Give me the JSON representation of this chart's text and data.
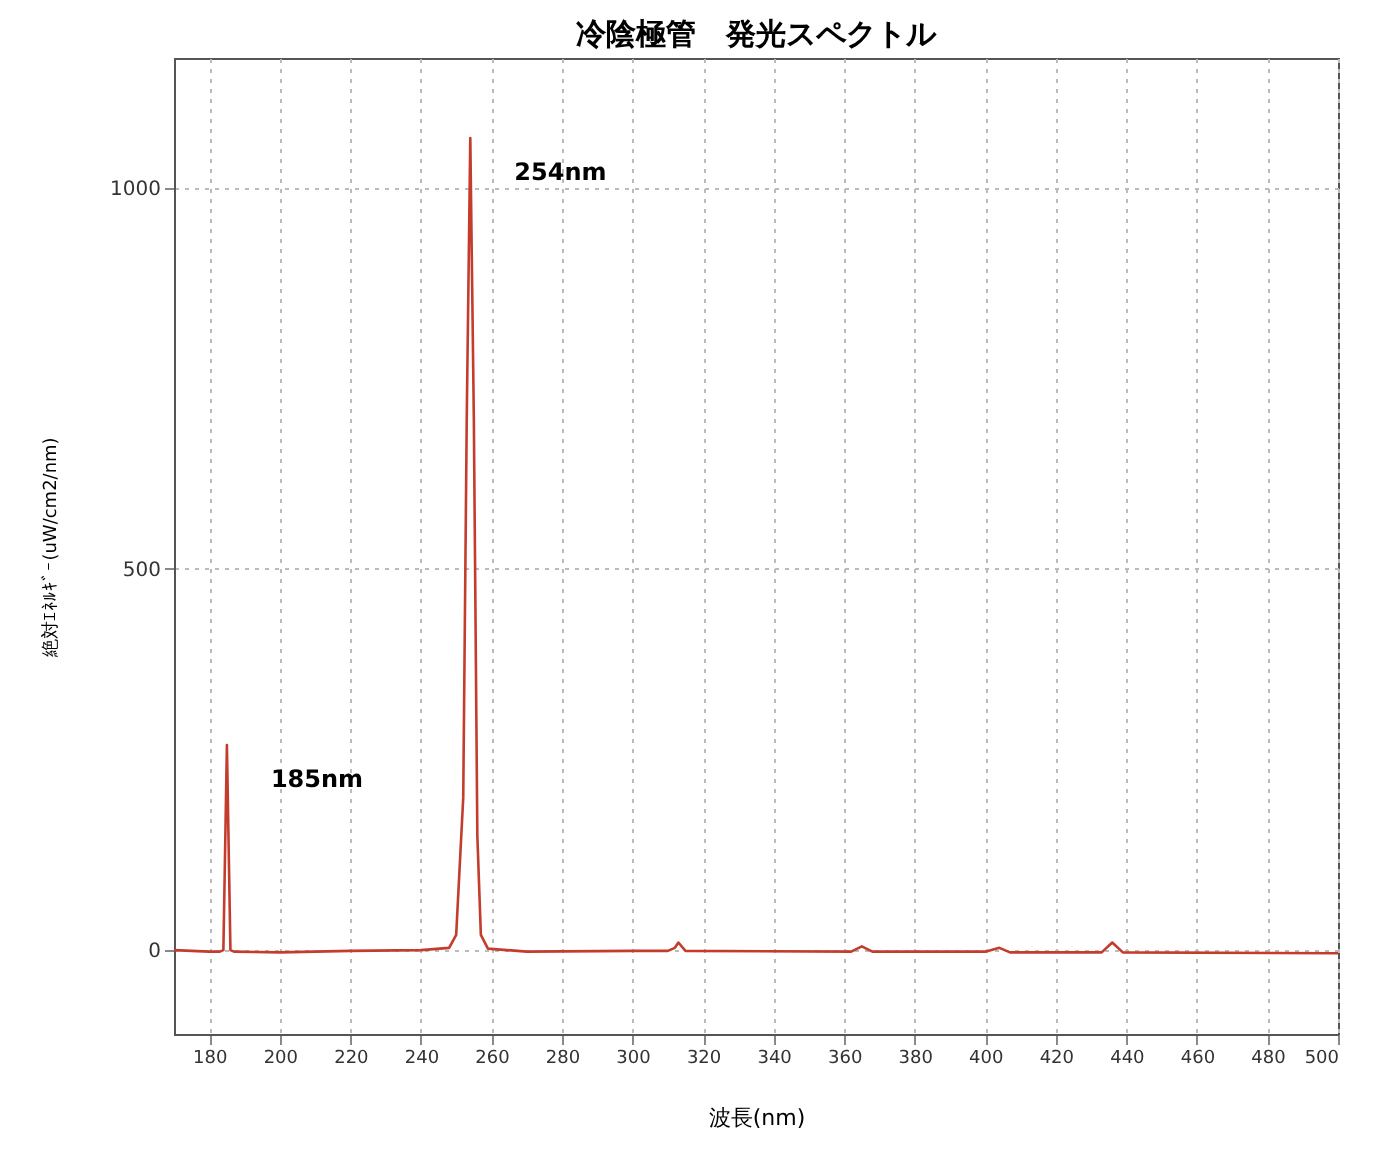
{
  "chart_data": {
    "type": "line",
    "title": "冷陰極管　発光スペクトル",
    "xlabel": "波長(nm)",
    "ylabel": "絶対ｴﾈﾙｷﾞｰ(uW/cm2/nm)",
    "x": [
      170,
      180,
      183,
      184,
      185,
      186,
      187,
      200,
      220,
      240,
      248,
      250,
      252,
      253,
      254,
      255,
      256,
      257,
      259,
      270,
      300,
      310,
      312,
      313,
      315,
      362,
      365,
      368,
      400,
      404,
      407,
      433,
      436,
      439,
      500
    ],
    "series": [
      {
        "color": "#c43c2c",
        "values": [
          0,
          -2,
          -2,
          0,
          269,
          0,
          -2,
          -3,
          -1,
          0,
          3,
          20,
          200,
          700,
          1065,
          700,
          150,
          20,
          2,
          -2,
          -1,
          -1,
          3,
          10,
          -1,
          -2,
          5,
          -2,
          -2,
          3,
          -3,
          -3,
          10,
          -3,
          -4
        ]
      }
    ],
    "xlim": [
      170,
      500
    ],
    "xticks": [
      180,
      200,
      220,
      240,
      260,
      280,
      300,
      320,
      340,
      360,
      380,
      400,
      420,
      440,
      460,
      480,
      500
    ],
    "ylim": [
      -110,
      1170
    ],
    "yticks": [
      0,
      500,
      1000
    ],
    "grid": true,
    "marker": "none",
    "line_style": "solid",
    "annotations": [
      {
        "text": "254nm",
        "x": 254,
        "y": 1065
      },
      {
        "text": "185nm",
        "x": 185,
        "y": 269
      }
    ]
  }
}
